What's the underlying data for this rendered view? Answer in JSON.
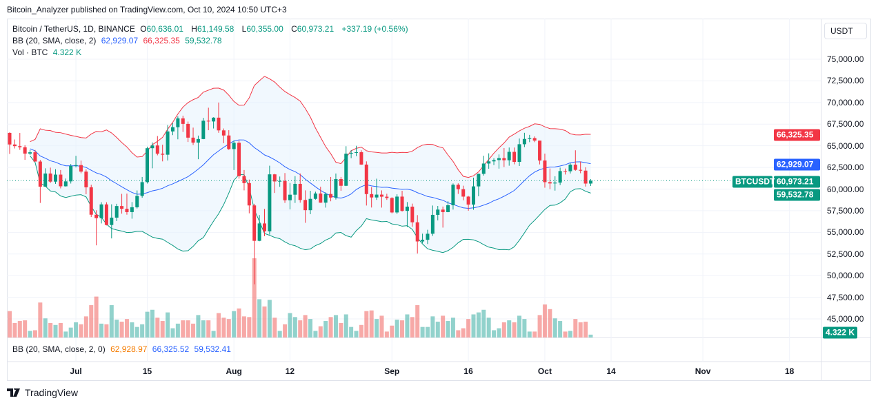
{
  "header": {
    "published": "Bitcoin_Analyzer published on TradingView.com, Oct 10, 2024 10:50 UTC+3"
  },
  "legend": {
    "symbol": "Bitcoin / TetherUS, 1D, BINANCE",
    "o_label": "O",
    "o": "60,636.01",
    "h_label": "H",
    "h": "61,149.58",
    "l_label": "L",
    "l": "60,355.00",
    "c_label": "C",
    "c": "60,973.21",
    "change": "+337.19 (+0.56%)",
    "bb_label": "BB (20, SMA, close, 2)",
    "bb_mid": "62,929.07",
    "bb_upper": "66,325.35",
    "bb_lower": "59,532.78",
    "vol_label": "Vol · BTC",
    "vol": "4.322 K"
  },
  "lower_pane": {
    "label": "BB (20, SMA, close, 2, 0)",
    "v1": "62,928.97",
    "v2": "66,325.52",
    "v3": "59,532.41"
  },
  "currency_button": "USDT",
  "badges": {
    "upper": "66,325.35",
    "mid": "62,929.07",
    "symbol": "BTCUSDT",
    "close": "60,973.21",
    "lower": "59,532.78",
    "volume": "4.322 K"
  },
  "colors": {
    "up": "#089981",
    "down": "#f23645",
    "bb_mid": "#2962ff",
    "bb_upper": "#f23645",
    "bb_lower": "#089981",
    "band_fill": "#e3f2fd"
  },
  "footer": {
    "brand": "TradingView"
  },
  "chart_data": {
    "type": "candlestick",
    "title": "Bitcoin / TetherUS, 1D, BINANCE",
    "ylim": [
      44000,
      77500
    ],
    "y_ticks": [
      "75,000.00",
      "72,500.00",
      "70,000.00",
      "67,500.00",
      "65,000.00",
      "62,500.00",
      "60,000.00",
      "57,500.00",
      "55,000.00",
      "52,500.00",
      "50,000.00",
      "47,500.00",
      "45,000.00"
    ],
    "y_tick_values": [
      75000,
      72500,
      70000,
      67500,
      65000,
      62500,
      60000,
      57500,
      55000,
      52500,
      50000,
      47500,
      45000
    ],
    "x_ticks": [
      {
        "label": "Jul",
        "date": "2024-07-01"
      },
      {
        "label": "15",
        "date": "2024-07-15"
      },
      {
        "label": "Aug",
        "date": "2024-08-01"
      },
      {
        "label": "12",
        "date": "2024-08-12"
      },
      {
        "label": "Sep",
        "date": "2024-09-01"
      },
      {
        "label": "16",
        "date": "2024-09-16"
      },
      {
        "label": "Oct",
        "date": "2024-10-01"
      },
      {
        "label": "14",
        "date": "2024-10-14"
      },
      {
        "label": "Nov",
        "date": "2024-11-01"
      },
      {
        "label": "18",
        "date": "2024-11-18"
      }
    ],
    "grid": true,
    "indicator": "Bollinger Bands (20, SMA, close, 2)",
    "volume_unit": "K BTC",
    "candles_fields": [
      "date",
      "open",
      "high",
      "low",
      "close",
      "volume"
    ],
    "candles": [
      [
        "2024-06-18",
        66490,
        66560,
        64060,
        65150,
        40
      ],
      [
        "2024-06-19",
        65150,
        65730,
        64690,
        64960,
        22
      ],
      [
        "2024-06-20",
        64960,
        66480,
        64530,
        64830,
        25
      ],
      [
        "2024-06-21",
        64830,
        65070,
        63380,
        64100,
        26
      ],
      [
        "2024-06-22",
        64100,
        64530,
        63940,
        64250,
        10
      ],
      [
        "2024-06-23",
        64250,
        64520,
        63180,
        63180,
        11
      ],
      [
        "2024-06-24",
        63180,
        63370,
        58400,
        60280,
        53
      ],
      [
        "2024-06-25",
        60280,
        62400,
        60260,
        61800,
        29
      ],
      [
        "2024-06-26",
        61800,
        62480,
        60710,
        60860,
        22
      ],
      [
        "2024-06-27",
        60860,
        62300,
        60600,
        61670,
        19
      ],
      [
        "2024-06-28",
        61670,
        62200,
        60080,
        60320,
        22
      ],
      [
        "2024-06-29",
        60320,
        61220,
        60290,
        60890,
        9
      ],
      [
        "2024-06-30",
        60890,
        62900,
        60640,
        62680,
        15
      ],
      [
        "2024-07-01",
        62680,
        63840,
        62500,
        62770,
        23
      ],
      [
        "2024-07-02",
        62770,
        63290,
        61820,
        62020,
        20
      ],
      [
        "2024-07-03",
        62020,
        62280,
        59400,
        60200,
        32
      ],
      [
        "2024-07-04",
        60200,
        60500,
        56770,
        57040,
        49
      ],
      [
        "2024-07-05",
        57040,
        57550,
        53500,
        56640,
        62
      ],
      [
        "2024-07-06",
        56640,
        58480,
        56030,
        58230,
        21
      ],
      [
        "2024-07-07",
        58230,
        58480,
        55800,
        55850,
        20
      ],
      [
        "2024-07-08",
        55850,
        58240,
        54300,
        56700,
        49
      ],
      [
        "2024-07-09",
        56700,
        58300,
        56300,
        58040,
        27
      ],
      [
        "2024-07-10",
        58040,
        59450,
        57160,
        57720,
        24
      ],
      [
        "2024-07-11",
        57720,
        59480,
        57040,
        57340,
        28
      ],
      [
        "2024-07-12",
        57340,
        58500,
        56580,
        57900,
        23
      ],
      [
        "2024-07-13",
        57900,
        59840,
        57760,
        59210,
        16
      ],
      [
        "2024-07-14",
        59210,
        61400,
        59000,
        60800,
        20
      ],
      [
        "2024-07-15",
        60800,
        64900,
        60640,
        64720,
        39
      ],
      [
        "2024-07-16",
        64720,
        65390,
        62400,
        65040,
        42
      ],
      [
        "2024-07-17",
        65040,
        66130,
        63900,
        64090,
        30
      ],
      [
        "2024-07-18",
        64090,
        65130,
        63200,
        63970,
        25
      ],
      [
        "2024-07-19",
        63970,
        67400,
        63300,
        66660,
        38
      ],
      [
        "2024-07-20",
        66660,
        67600,
        66230,
        67150,
        14
      ],
      [
        "2024-07-21",
        67150,
        68400,
        65750,
        68170,
        21
      ],
      [
        "2024-07-22",
        68170,
        68480,
        66600,
        67530,
        26
      ],
      [
        "2024-07-23",
        67530,
        67800,
        65440,
        65940,
        26
      ],
      [
        "2024-07-24",
        65940,
        67100,
        65100,
        65370,
        21
      ],
      [
        "2024-07-25",
        65370,
        66180,
        63450,
        65780,
        34
      ],
      [
        "2024-07-26",
        65780,
        68230,
        65760,
        67900,
        26
      ],
      [
        "2024-07-27",
        67900,
        69400,
        66800,
        67810,
        26
      ],
      [
        "2024-07-28",
        67810,
        68300,
        67000,
        68250,
        10
      ],
      [
        "2024-07-29",
        68250,
        70000,
        66500,
        66780,
        37
      ],
      [
        "2024-07-30",
        66780,
        67000,
        65300,
        66190,
        30
      ],
      [
        "2024-07-31",
        66190,
        66800,
        64530,
        64620,
        28
      ],
      [
        "2024-08-01",
        64620,
        65600,
        62200,
        65350,
        40
      ],
      [
        "2024-08-02",
        65350,
        65600,
        61200,
        61490,
        44
      ],
      [
        "2024-08-03",
        61490,
        62200,
        59850,
        60690,
        32
      ],
      [
        "2024-08-04",
        60690,
        61100,
        57200,
        58110,
        31
      ],
      [
        "2024-08-05",
        58110,
        58300,
        49000,
        54020,
        120
      ],
      [
        "2024-08-06",
        54020,
        57000,
        53970,
        56030,
        58
      ],
      [
        "2024-08-07",
        56030,
        57700,
        54560,
        55120,
        47
      ],
      [
        "2024-08-08",
        55120,
        62700,
        54740,
        61700,
        57
      ],
      [
        "2024-08-09",
        61700,
        61760,
        59550,
        60880,
        30
      ],
      [
        "2024-08-10",
        60880,
        61450,
        60260,
        60940,
        10
      ],
      [
        "2024-08-11",
        60940,
        61850,
        58400,
        58710,
        20
      ],
      [
        "2024-08-12",
        58710,
        60700,
        57650,
        59350,
        37
      ],
      [
        "2024-08-13",
        59350,
        61500,
        58400,
        60600,
        31
      ],
      [
        "2024-08-14",
        60600,
        61800,
        58430,
        58740,
        26
      ],
      [
        "2024-08-15",
        58740,
        59850,
        56100,
        57560,
        34
      ],
      [
        "2024-08-16",
        57560,
        59800,
        57100,
        58870,
        28
      ],
      [
        "2024-08-17",
        58870,
        59700,
        58780,
        59490,
        10
      ],
      [
        "2024-08-18",
        59490,
        60270,
        58410,
        58430,
        17
      ],
      [
        "2024-08-19",
        58430,
        59620,
        57860,
        59430,
        25
      ],
      [
        "2024-08-20",
        59430,
        61400,
        58590,
        59020,
        31
      ],
      [
        "2024-08-21",
        59020,
        61800,
        58790,
        61160,
        34
      ],
      [
        "2024-08-22",
        61160,
        61400,
        59800,
        60380,
        22
      ],
      [
        "2024-08-23",
        60380,
        64950,
        60340,
        64090,
        35
      ],
      [
        "2024-08-24",
        64090,
        64490,
        63570,
        64180,
        16
      ],
      [
        "2024-08-25",
        64180,
        65000,
        63800,
        64260,
        10
      ],
      [
        "2024-08-26",
        64260,
        64480,
        62800,
        62830,
        19
      ],
      [
        "2024-08-27",
        62830,
        63200,
        58100,
        59420,
        40
      ],
      [
        "2024-08-28",
        59420,
        60230,
        57870,
        59030,
        41
      ],
      [
        "2024-08-29",
        59030,
        61200,
        58750,
        59360,
        28
      ],
      [
        "2024-08-30",
        59360,
        59850,
        57860,
        59120,
        33
      ],
      [
        "2024-08-31",
        59120,
        59460,
        58750,
        58970,
        9
      ],
      [
        "2024-09-01",
        58970,
        59060,
        57200,
        57300,
        18
      ],
      [
        "2024-09-02",
        57300,
        59400,
        57130,
        59130,
        27
      ],
      [
        "2024-09-03",
        59130,
        59800,
        57400,
        57480,
        26
      ],
      [
        "2024-09-04",
        57480,
        58500,
        55600,
        57970,
        35
      ],
      [
        "2024-09-05",
        57970,
        58320,
        55650,
        56160,
        31
      ],
      [
        "2024-09-06",
        56160,
        56990,
        52550,
        53950,
        49
      ],
      [
        "2024-09-07",
        53950,
        54850,
        53740,
        54140,
        16
      ],
      [
        "2024-09-08",
        54140,
        55300,
        53650,
        54840,
        16
      ],
      [
        "2024-09-09",
        54840,
        58100,
        54590,
        57020,
        32
      ],
      [
        "2024-09-10",
        57020,
        58050,
        56380,
        57630,
        24
      ],
      [
        "2024-09-11",
        57630,
        57980,
        55550,
        57340,
        33
      ],
      [
        "2024-09-12",
        57340,
        58600,
        57320,
        58130,
        25
      ],
      [
        "2024-09-13",
        58130,
        60650,
        57630,
        60500,
        30
      ],
      [
        "2024-09-14",
        60500,
        60660,
        59440,
        59990,
        11
      ],
      [
        "2024-09-15",
        59990,
        60390,
        58700,
        59130,
        14
      ],
      [
        "2024-09-16",
        59130,
        59210,
        57500,
        58210,
        28
      ],
      [
        "2024-09-17",
        58210,
        61320,
        57610,
        60310,
        35
      ],
      [
        "2024-09-18",
        60310,
        61790,
        59170,
        61760,
        38
      ],
      [
        "2024-09-19",
        61760,
        63850,
        61560,
        62950,
        42
      ],
      [
        "2024-09-20",
        62950,
        64130,
        62350,
        63200,
        30
      ],
      [
        "2024-09-21",
        63200,
        63560,
        62770,
        63350,
        11
      ],
      [
        "2024-09-22",
        63350,
        64000,
        62360,
        63580,
        14
      ],
      [
        "2024-09-23",
        63580,
        64740,
        62550,
        63330,
        23
      ],
      [
        "2024-09-24",
        63330,
        64800,
        62700,
        64300,
        26
      ],
      [
        "2024-09-25",
        64300,
        64800,
        62860,
        63140,
        23
      ],
      [
        "2024-09-26",
        63140,
        65840,
        62670,
        65180,
        33
      ],
      [
        "2024-09-27",
        65180,
        66500,
        64850,
        65790,
        28
      ],
      [
        "2024-09-28",
        65790,
        66260,
        65420,
        65890,
        9
      ],
      [
        "2024-09-29",
        65890,
        66080,
        65420,
        65600,
        9
      ],
      [
        "2024-09-30",
        65600,
        65600,
        62850,
        63300,
        34
      ],
      [
        "2024-10-01",
        63300,
        64100,
        60160,
        60800,
        50
      ],
      [
        "2024-10-02",
        60800,
        62380,
        59990,
        60650,
        43
      ],
      [
        "2024-10-03",
        60650,
        61480,
        59820,
        60750,
        29
      ],
      [
        "2024-10-04",
        60750,
        62480,
        60460,
        62080,
        25
      ],
      [
        "2024-10-05",
        62080,
        62370,
        61680,
        62060,
        9
      ],
      [
        "2024-10-06",
        62060,
        62980,
        61800,
        62820,
        10
      ],
      [
        "2024-10-07",
        62820,
        64480,
        62120,
        62220,
        28
      ],
      [
        "2024-10-08",
        62220,
        63180,
        61830,
        62130,
        23
      ],
      [
        "2024-10-09",
        62130,
        62520,
        60290,
        60636.01,
        24
      ],
      [
        "2024-10-10",
        60636.01,
        61149.58,
        60355.0,
        60973.21,
        4.322
      ]
    ],
    "last_bb": {
      "mid": 62929.07,
      "upper": 66325.35,
      "lower": 59532.78
    }
  }
}
